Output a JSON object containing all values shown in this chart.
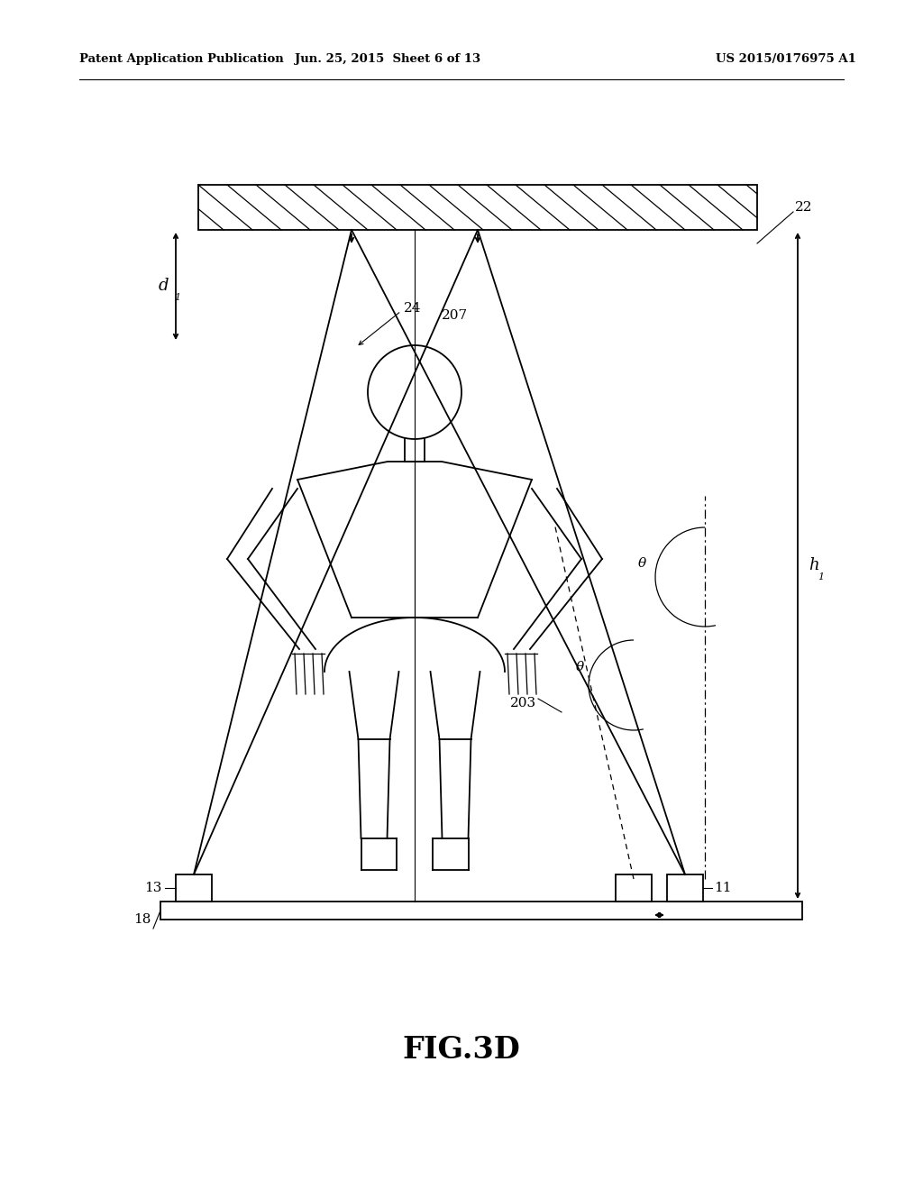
{
  "header_left": "Patent Application Publication",
  "header_mid": "Jun. 25, 2015  Sheet 6 of 13",
  "header_right": "US 2015/0176975 A1",
  "figure_label": "FIG.3D",
  "bg_color": "#ffffff",
  "lc": "#000000",
  "label_22": "22",
  "label_24": "24",
  "label_207": "207",
  "label_d1": "d",
  "label_h1": "h",
  "label_13": "13",
  "label_11": "11",
  "label_18": "18",
  "label_203": "203",
  "label_theta": "θ"
}
